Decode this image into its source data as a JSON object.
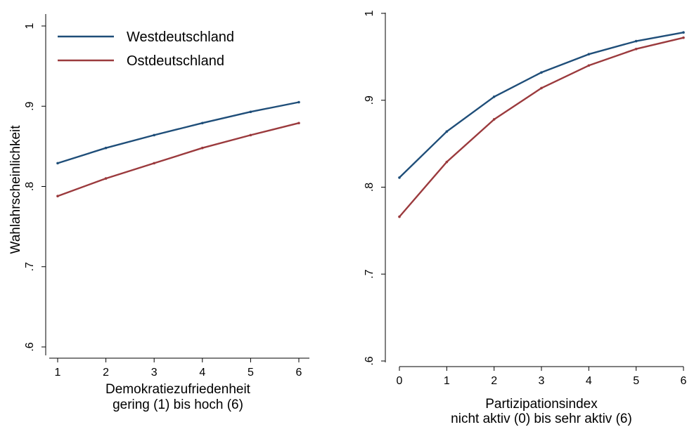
{
  "chart_data": [
    {
      "type": "line",
      "title": "",
      "xlabel": "Demokratiezufriedenheit",
      "xlabel2": "gering (1) bis hoch (6)",
      "ylabel": "Wahlahrscheinlichkeit",
      "x": [
        1,
        2,
        3,
        4,
        5,
        6
      ],
      "xticks": [
        "1",
        "2",
        "3",
        "4",
        "5",
        "6"
      ],
      "yticks": [
        ".6",
        ".7",
        ".8",
        ".9",
        "1"
      ],
      "ytick_values": [
        0.6,
        0.7,
        0.8,
        0.9,
        1.0
      ],
      "xlim": [
        1,
        6
      ],
      "ylim": [
        0.6,
        1.0
      ],
      "legend": "top-left",
      "series": [
        {
          "name": "Westdeutschland",
          "color": "#1f4e79",
          "values": [
            0.829,
            0.848,
            0.864,
            0.879,
            0.893,
            0.905
          ]
        },
        {
          "name": "Ostdeutschland",
          "color": "#9b3a3d",
          "values": [
            0.788,
            0.81,
            0.829,
            0.848,
            0.864,
            0.879
          ]
        }
      ]
    },
    {
      "type": "line",
      "title": "",
      "xlabel": "Partizipationsindex",
      "xlabel2": "nicht aktiv (0) bis sehr aktiv (6)",
      "ylabel": "",
      "x": [
        0,
        1,
        2,
        3,
        4,
        5,
        6
      ],
      "xticks": [
        "0",
        "1",
        "2",
        "3",
        "4",
        "5",
        "6"
      ],
      "yticks": [
        ".6",
        ".7",
        ".8",
        ".9",
        "1"
      ],
      "ytick_values": [
        0.6,
        0.7,
        0.8,
        0.9,
        1.0
      ],
      "xlim": [
        0,
        6
      ],
      "ylim": [
        0.6,
        1.0
      ],
      "series": [
        {
          "name": "Westdeutschland",
          "color": "#1f4e79",
          "values": [
            0.811,
            0.864,
            0.904,
            0.932,
            0.953,
            0.968,
            0.978
          ]
        },
        {
          "name": "Ostdeutschland",
          "color": "#9b3a3d",
          "values": [
            0.766,
            0.829,
            0.878,
            0.914,
            0.94,
            0.959,
            0.972
          ]
        }
      ]
    }
  ]
}
